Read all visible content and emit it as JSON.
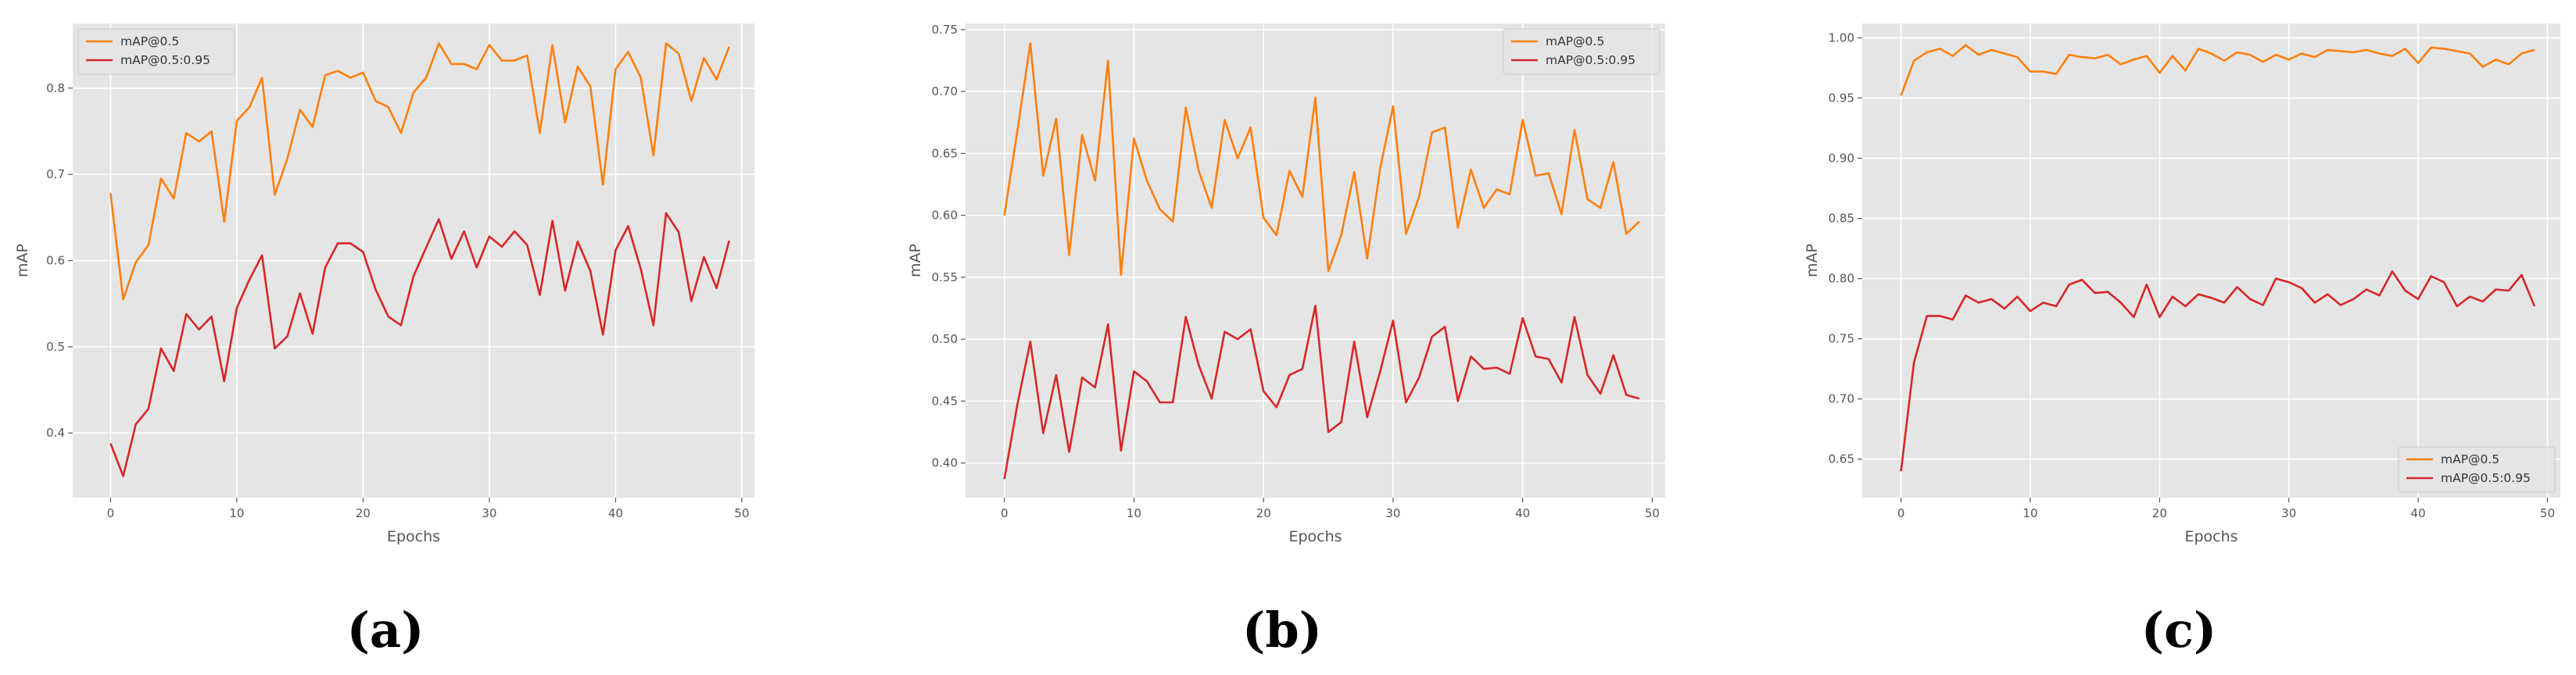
{
  "chart_data": [
    {
      "type": "line",
      "caption": "(a)",
      "xlabel": "Epochs",
      "ylabel": "mAP",
      "xlim": [
        -3,
        51
      ],
      "ylim": [
        0.325,
        0.875
      ],
      "xticks": [
        0,
        10,
        20,
        30,
        40,
        50
      ],
      "yticks": [
        0.4,
        0.5,
        0.6,
        0.7,
        0.8
      ],
      "ytick_labels": [
        "0.4",
        "0.5",
        "0.6",
        "0.7",
        "0.8"
      ],
      "grid": true,
      "legend_position": "top-left",
      "series": [
        {
          "name": "mAP@0.5",
          "color": "#ff7f0e",
          "x": [
            0,
            1,
            2,
            3,
            4,
            5,
            6,
            7,
            8,
            9,
            10,
            11,
            12,
            13,
            14,
            15,
            16,
            17,
            18,
            19,
            20,
            21,
            22,
            23,
            24,
            25,
            26,
            27,
            28,
            29,
            30,
            31,
            32,
            33,
            34,
            35,
            36,
            37,
            38,
            39,
            40,
            41,
            42,
            43,
            44,
            45,
            46,
            47,
            48,
            49
          ],
          "values": [
            0.678,
            0.555,
            0.598,
            0.618,
            0.695,
            0.672,
            0.748,
            0.738,
            0.75,
            0.645,
            0.762,
            0.778,
            0.812,
            0.676,
            0.718,
            0.775,
            0.755,
            0.815,
            0.82,
            0.812,
            0.818,
            0.785,
            0.778,
            0.748,
            0.795,
            0.812,
            0.852,
            0.828,
            0.828,
            0.822,
            0.85,
            0.832,
            0.832,
            0.838,
            0.748,
            0.85,
            0.76,
            0.825,
            0.802,
            0.688,
            0.822,
            0.842,
            0.812,
            0.722,
            0.852,
            0.84,
            0.785,
            0.835,
            0.81,
            0.848
          ]
        },
        {
          "name": "mAP@0.5:0.95",
          "color": "#d62728",
          "x": [
            0,
            1,
            2,
            3,
            4,
            5,
            6,
            7,
            8,
            9,
            10,
            11,
            12,
            13,
            14,
            15,
            16,
            17,
            18,
            19,
            20,
            21,
            22,
            23,
            24,
            25,
            26,
            27,
            28,
            29,
            30,
            31,
            32,
            33,
            34,
            35,
            36,
            37,
            38,
            39,
            40,
            41,
            42,
            43,
            44,
            45,
            46,
            47,
            48,
            49
          ],
          "values": [
            0.388,
            0.35,
            0.41,
            0.428,
            0.498,
            0.472,
            0.538,
            0.52,
            0.535,
            0.46,
            0.545,
            0.578,
            0.606,
            0.498,
            0.512,
            0.562,
            0.515,
            0.592,
            0.62,
            0.62,
            0.61,
            0.566,
            0.535,
            0.525,
            0.582,
            0.615,
            0.648,
            0.602,
            0.634,
            0.592,
            0.628,
            0.616,
            0.634,
            0.618,
            0.56,
            0.646,
            0.565,
            0.622,
            0.588,
            0.514,
            0.612,
            0.64,
            0.59,
            0.525,
            0.655,
            0.633,
            0.553,
            0.604,
            0.568,
            0.623
          ]
        }
      ]
    },
    {
      "type": "line",
      "caption": "(b)",
      "xlabel": "Epochs",
      "ylabel": "mAP",
      "xlim": [
        -3,
        51
      ],
      "ylim": [
        0.372,
        0.755
      ],
      "xticks": [
        0,
        10,
        20,
        30,
        40,
        50
      ],
      "yticks": [
        0.4,
        0.45,
        0.5,
        0.55,
        0.6,
        0.65,
        0.7,
        0.75
      ],
      "ytick_labels": [
        "0.40",
        "0.45",
        "0.50",
        "0.55",
        "0.60",
        "0.65",
        "0.70",
        "0.75"
      ],
      "grid": true,
      "legend_position": "top-right",
      "series": [
        {
          "name": "mAP@0.5",
          "color": "#ff7f0e",
          "x": [
            0,
            1,
            2,
            3,
            4,
            5,
            6,
            7,
            8,
            9,
            10,
            11,
            12,
            13,
            14,
            15,
            16,
            17,
            18,
            19,
            20,
            21,
            22,
            23,
            24,
            25,
            26,
            27,
            28,
            29,
            30,
            31,
            32,
            33,
            34,
            35,
            36,
            37,
            38,
            39,
            40,
            41,
            42,
            43,
            44,
            45,
            46,
            47,
            48,
            49
          ],
          "values": [
            0.6,
            0.668,
            0.739,
            0.632,
            0.678,
            0.568,
            0.665,
            0.628,
            0.725,
            0.552,
            0.662,
            0.628,
            0.605,
            0.595,
            0.687,
            0.636,
            0.606,
            0.677,
            0.646,
            0.671,
            0.598,
            0.584,
            0.636,
            0.615,
            0.695,
            0.555,
            0.584,
            0.635,
            0.565,
            0.638,
            0.688,
            0.585,
            0.615,
            0.667,
            0.671,
            0.59,
            0.637,
            0.606,
            0.621,
            0.617,
            0.677,
            0.632,
            0.634,
            0.601,
            0.669,
            0.613,
            0.606,
            0.643,
            0.585,
            0.595
          ]
        },
        {
          "name": "mAP@0.5:0.95",
          "color": "#d62728",
          "x": [
            0,
            1,
            2,
            3,
            4,
            5,
            6,
            7,
            8,
            9,
            10,
            11,
            12,
            13,
            14,
            15,
            16,
            17,
            18,
            19,
            20,
            21,
            22,
            23,
            24,
            25,
            26,
            27,
            28,
            29,
            30,
            31,
            32,
            33,
            34,
            35,
            36,
            37,
            38,
            39,
            40,
            41,
            42,
            43,
            44,
            45,
            46,
            47,
            48,
            49
          ],
          "values": [
            0.387,
            0.447,
            0.498,
            0.424,
            0.471,
            0.409,
            0.469,
            0.461,
            0.512,
            0.41,
            0.474,
            0.466,
            0.449,
            0.449,
            0.518,
            0.479,
            0.452,
            0.506,
            0.5,
            0.508,
            0.458,
            0.445,
            0.471,
            0.476,
            0.527,
            0.425,
            0.433,
            0.498,
            0.437,
            0.474,
            0.515,
            0.449,
            0.469,
            0.502,
            0.51,
            0.45,
            0.486,
            0.476,
            0.477,
            0.472,
            0.517,
            0.486,
            0.484,
            0.465,
            0.518,
            0.471,
            0.456,
            0.487,
            0.455,
            0.452
          ]
        }
      ]
    },
    {
      "type": "line",
      "caption": "(c)",
      "xlabel": "Epochs",
      "ylabel": "mAP",
      "xlim": [
        -3,
        51
      ],
      "ylim": [
        0.618,
        1.012
      ],
      "xticks": [
        0,
        10,
        20,
        30,
        40,
        50
      ],
      "yticks": [
        0.65,
        0.7,
        0.75,
        0.8,
        0.85,
        0.9,
        0.95,
        1.0
      ],
      "ytick_labels": [
        "0.65",
        "0.70",
        "0.75",
        "0.80",
        "0.85",
        "0.90",
        "0.95",
        "1.00"
      ],
      "grid": true,
      "legend_position": "bottom-right",
      "series": [
        {
          "name": "mAP@0.5",
          "color": "#ff7f0e",
          "x": [
            0,
            1,
            2,
            3,
            4,
            5,
            6,
            7,
            8,
            9,
            10,
            11,
            12,
            13,
            14,
            15,
            16,
            17,
            18,
            19,
            20,
            21,
            22,
            23,
            24,
            25,
            26,
            27,
            28,
            29,
            30,
            31,
            32,
            33,
            34,
            35,
            36,
            37,
            38,
            39,
            40,
            41,
            42,
            43,
            44,
            45,
            46,
            47,
            48,
            49
          ],
          "values": [
            0.952,
            0.981,
            0.988,
            0.991,
            0.985,
            0.994,
            0.986,
            0.99,
            0.987,
            0.984,
            0.972,
            0.972,
            0.97,
            0.986,
            0.984,
            0.983,
            0.986,
            0.978,
            0.982,
            0.985,
            0.971,
            0.985,
            0.973,
            0.991,
            0.987,
            0.981,
            0.988,
            0.986,
            0.98,
            0.986,
            0.982,
            0.987,
            0.984,
            0.99,
            0.989,
            0.988,
            0.99,
            0.987,
            0.985,
            0.991,
            0.979,
            0.992,
            0.991,
            0.989,
            0.987,
            0.976,
            0.982,
            0.978,
            0.987,
            0.99
          ]
        },
        {
          "name": "mAP@0.5:0.95",
          "color": "#d62728",
          "x": [
            0,
            1,
            2,
            3,
            4,
            5,
            6,
            7,
            8,
            9,
            10,
            11,
            12,
            13,
            14,
            15,
            16,
            17,
            18,
            19,
            20,
            21,
            22,
            23,
            24,
            25,
            26,
            27,
            28,
            29,
            30,
            31,
            32,
            33,
            34,
            35,
            36,
            37,
            38,
            39,
            40,
            41,
            42,
            43,
            44,
            45,
            46,
            47,
            48,
            49
          ],
          "values": [
            0.64,
            0.73,
            0.769,
            0.769,
            0.766,
            0.786,
            0.78,
            0.783,
            0.775,
            0.785,
            0.773,
            0.78,
            0.777,
            0.795,
            0.799,
            0.788,
            0.789,
            0.78,
            0.768,
            0.795,
            0.768,
            0.785,
            0.777,
            0.787,
            0.784,
            0.78,
            0.793,
            0.783,
            0.778,
            0.8,
            0.797,
            0.792,
            0.78,
            0.787,
            0.778,
            0.783,
            0.791,
            0.786,
            0.806,
            0.79,
            0.783,
            0.802,
            0.797,
            0.777,
            0.785,
            0.781,
            0.791,
            0.79,
            0.803,
            0.777
          ]
        }
      ]
    }
  ]
}
